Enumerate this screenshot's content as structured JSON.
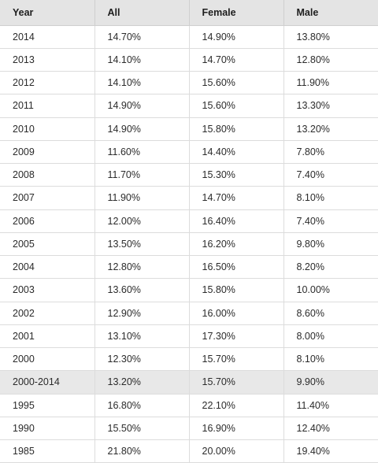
{
  "chart_data": {
    "type": "table",
    "columns": [
      "Year",
      "All",
      "Female",
      "Male"
    ],
    "rows": [
      [
        "2014",
        "14.70%",
        "14.90%",
        "13.80%"
      ],
      [
        "2013",
        "14.10%",
        "14.70%",
        "12.80%"
      ],
      [
        "2012",
        "14.10%",
        "15.60%",
        "11.90%"
      ],
      [
        "2011",
        "14.90%",
        "15.60%",
        "13.30%"
      ],
      [
        "2010",
        "14.90%",
        "15.80%",
        "13.20%"
      ],
      [
        "2009",
        "11.60%",
        "14.40%",
        "7.80%"
      ],
      [
        "2008",
        "11.70%",
        "15.30%",
        "7.40%"
      ],
      [
        "2007",
        "11.90%",
        "14.70%",
        "8.10%"
      ],
      [
        "2006",
        "12.00%",
        "16.40%",
        "7.40%"
      ],
      [
        "2005",
        "13.50%",
        "16.20%",
        "9.80%"
      ],
      [
        "2004",
        "12.80%",
        "16.50%",
        "8.20%"
      ],
      [
        "2003",
        "13.60%",
        "15.80%",
        "10.00%"
      ],
      [
        "2002",
        "12.90%",
        "16.00%",
        "8.60%"
      ],
      [
        "2001",
        "13.10%",
        "17.30%",
        "8.00%"
      ],
      [
        "2000",
        "12.30%",
        "15.70%",
        "8.10%"
      ],
      [
        "2000-2014",
        "13.20%",
        "15.70%",
        "9.90%"
      ],
      [
        "1995",
        "16.80%",
        "22.10%",
        "11.40%"
      ],
      [
        "1990",
        "15.50%",
        "16.90%",
        "12.40%"
      ],
      [
        "1985",
        "21.80%",
        "20.00%",
        "19.40%"
      ]
    ],
    "highlighted_row": "2000-2014",
    "colors": {
      "header_bg": "#e4e4e4",
      "highlight_bg": "#e8e8e8",
      "grid": "#dcdcdc",
      "text": "#2b2b2b"
    }
  }
}
